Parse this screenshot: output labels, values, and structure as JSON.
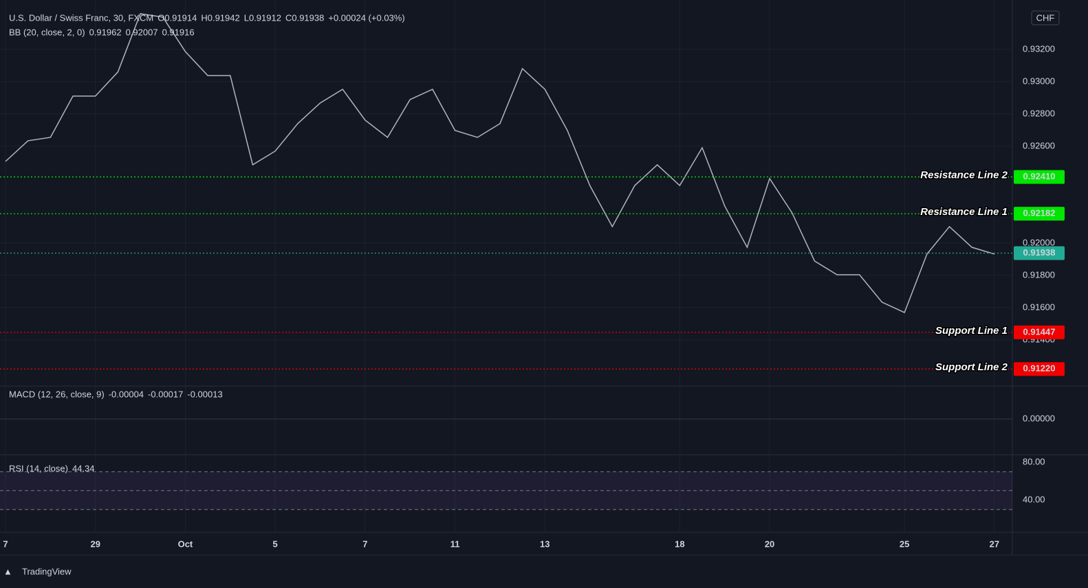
{
  "chart_data": {
    "type": "line",
    "legend": {
      "symbol": "U.S. Dollar / Swiss Franc, 30, FXCM",
      "open_label": "O",
      "open": "0.91914",
      "high_label": "H",
      "high": "0.91942",
      "low_label": "L",
      "low": "0.91912",
      "close_label": "C",
      "close": "0.91938",
      "change": "+0.00024 (+0.03%)",
      "bb_label": "BB (20, close, 2, 0)",
      "bb_values": [
        {
          "text": "0.91962",
          "color": "#f7931a"
        },
        {
          "text": "0.92007",
          "color": "#2962ff"
        },
        {
          "text": "0.91916",
          "color": "#2962ff"
        }
      ]
    },
    "currency": "CHF",
    "xlim": [
      0,
      22.4
    ],
    "xticks": [
      {
        "value": 0,
        "label": "7"
      },
      {
        "value": 2,
        "label": "29"
      },
      {
        "value": 4,
        "label": "Oct"
      },
      {
        "value": 6,
        "label": "5"
      },
      {
        "value": 8,
        "label": "7"
      },
      {
        "value": 10,
        "label": "11"
      },
      {
        "value": 12,
        "label": "13"
      },
      {
        "value": 15,
        "label": "18"
      },
      {
        "value": 17,
        "label": "20"
      },
      {
        "value": 20,
        "label": "25"
      },
      {
        "value": 22,
        "label": "27"
      }
    ],
    "ylim": [
      0.91123,
      0.93472
    ],
    "yticks": [
      {
        "value": 0.932,
        "label": "0.93200"
      },
      {
        "value": 0.93,
        "label": "0.93000"
      },
      {
        "value": 0.928,
        "label": "0.92800"
      },
      {
        "value": 0.926,
        "label": "0.92600"
      },
      {
        "value": 0.92,
        "label": "0.92000"
      },
      {
        "value": 0.918,
        "label": "0.91800"
      },
      {
        "value": 0.916,
        "label": "0.91600"
      },
      {
        "value": 0.914,
        "label": "0.91400"
      }
    ],
    "series": [
      {
        "color": "#b2b5be",
        "x": [
          0,
          0.5,
          1,
          1.5,
          2,
          2.5,
          3,
          3.5,
          4,
          4.5,
          5,
          5.5,
          6,
          6.5,
          7,
          7.5,
          8,
          8.5,
          9,
          9.5,
          10,
          10.5,
          11,
          11.5,
          12,
          12.5,
          13,
          13.5,
          14,
          14.5,
          15,
          15.5,
          16,
          16.5,
          17,
          17.5,
          18,
          18.5,
          19,
          19.5,
          20,
          20.5,
          21,
          21.5,
          22
        ],
        "values": [
          0.92506,
          0.92634,
          0.92655,
          0.92911,
          0.92911,
          0.9306,
          0.93421,
          0.934,
          0.93187,
          0.93038,
          0.93038,
          0.92485,
          0.9257,
          0.9274,
          0.92868,
          0.92953,
          0.92762,
          0.92655,
          0.92889,
          0.92953,
          0.92698,
          0.92655,
          0.9274,
          0.93081,
          0.92953,
          0.92698,
          0.92357,
          0.92102,
          0.92357,
          0.92485,
          0.92357,
          0.92591,
          0.9223,
          0.91974,
          0.924,
          0.92187,
          0.91889,
          0.91804,
          0.91804,
          0.91634,
          0.9157,
          0.91932,
          0.92102,
          0.91974,
          0.91932
        ]
      }
    ],
    "levels": [
      {
        "name": "Resistance Line 2",
        "value": 0.9241,
        "label": "0.92410",
        "color": "#00e600"
      },
      {
        "name": "Resistance Line 1",
        "value": 0.92182,
        "label": "0.92182",
        "color": "#00e600"
      },
      {
        "name": null,
        "value": 0.91938,
        "label": "0.91938",
        "color": "#22ab94"
      },
      {
        "name": "Support Line 1",
        "value": 0.91447,
        "label": "0.91447",
        "color": "#f20000"
      },
      {
        "name": "Support Line 2",
        "value": 0.9122,
        "label": "0.91220",
        "color": "#f20000"
      }
    ],
    "macd": {
      "label": "MACD (12, 26, close, 9)",
      "values": [
        {
          "text": "-0.00004",
          "color": "#f0d0d0"
        },
        {
          "text": "-0.00017",
          "color": "#2962ff"
        },
        {
          "text": "-0.00013",
          "color": "#f7931a"
        }
      ],
      "ylim": [
        -0.0006,
        0.0006
      ],
      "yticks": [
        {
          "value": 0,
          "label": "0.00000"
        }
      ]
    },
    "rsi": {
      "label": "RSI (14, close)",
      "value": "44.34",
      "color": "#7e57c2",
      "ylim": [
        7.3,
        85.8
      ],
      "yticks": [
        {
          "value": 80,
          "label": "80.00"
        },
        {
          "value": 40,
          "label": "40.00"
        }
      ],
      "bands": [
        70,
        50,
        30
      ]
    },
    "brand": "TradingView"
  }
}
